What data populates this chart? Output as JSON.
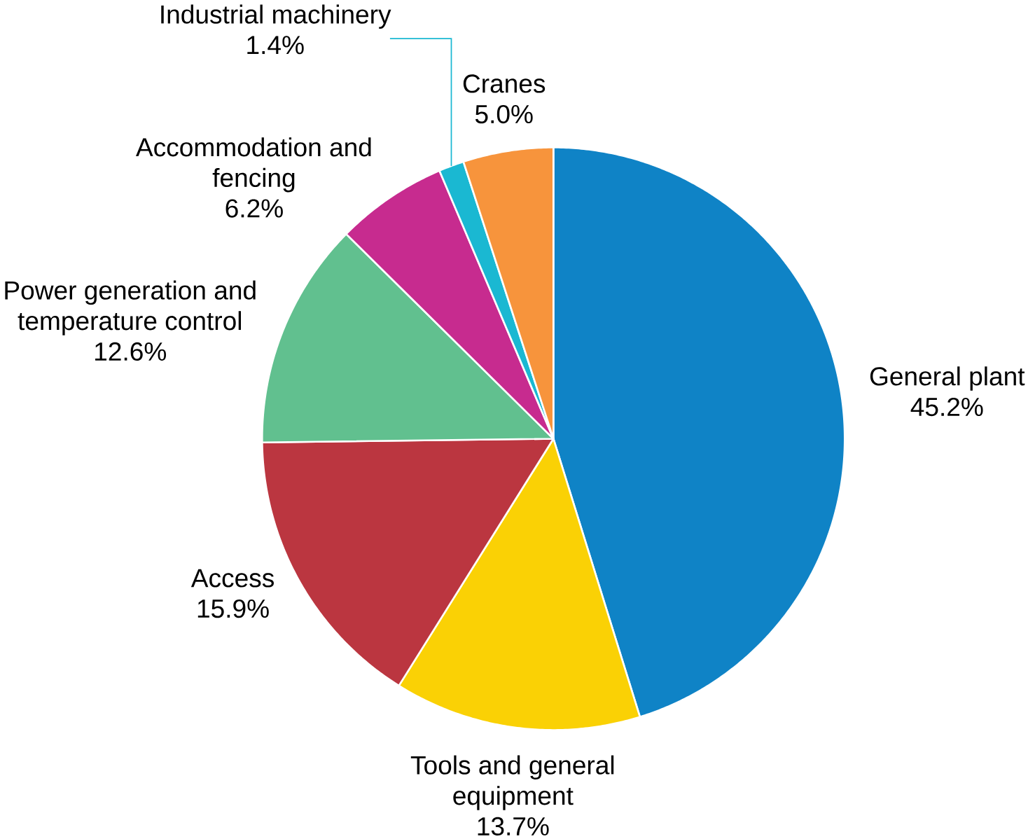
{
  "chart_data": {
    "type": "pie",
    "categories": [
      "General plant",
      "Tools and general equipment",
      "Access",
      "Power generation and temperature control",
      "Accommodation and fencing",
      "Industrial machinery",
      "Cranes"
    ],
    "values": [
      45.2,
      13.7,
      15.9,
      12.6,
      6.2,
      1.4,
      5.0
    ],
    "colors": [
      "#0f83c6",
      "#fad105",
      "#bb3640",
      "#61c08f",
      "#c72b8f",
      "#1ab8d2",
      "#f7943c"
    ],
    "value_labels": [
      "45.2%",
      "13.7%",
      "15.9%",
      "12.6%",
      "6.2%",
      "1.4%",
      "5.0%"
    ]
  }
}
